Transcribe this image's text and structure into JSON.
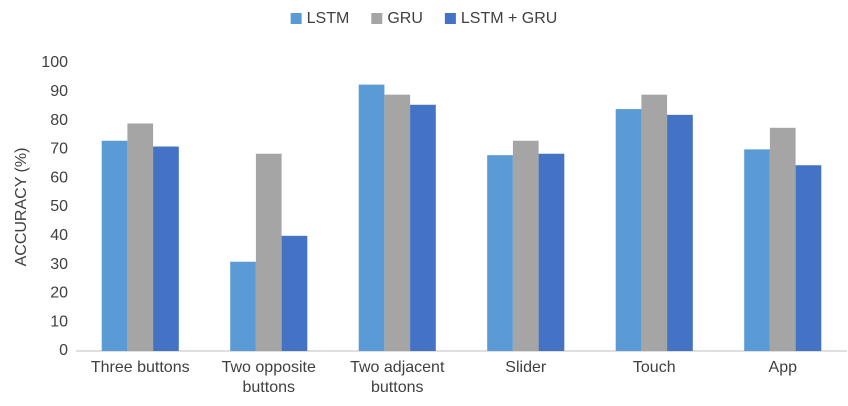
{
  "chart_data": {
    "type": "bar",
    "categories": [
      "Three buttons",
      "Two opposite buttons",
      "Two adjacent buttons",
      "Slider",
      "Touch",
      "App"
    ],
    "series": [
      {
        "name": "LSTM",
        "color": "#5b9bd5",
        "values": [
          73,
          31,
          92.5,
          68,
          84,
          70
        ]
      },
      {
        "name": "GRU",
        "color": "#a5a5a5",
        "values": [
          79,
          68.5,
          89,
          73,
          89,
          77.5
        ]
      },
      {
        "name": "LSTM + GRU",
        "color": "#4472c4",
        "values": [
          71,
          40,
          85.5,
          68.5,
          82,
          64.5
        ]
      }
    ],
    "ylabel": "ACCURACY (%)",
    "ylim": [
      0,
      100
    ],
    "yticks": [
      0,
      10,
      20,
      30,
      40,
      50,
      60,
      70,
      80,
      90,
      100
    ],
    "grid": false,
    "legend": "top"
  }
}
